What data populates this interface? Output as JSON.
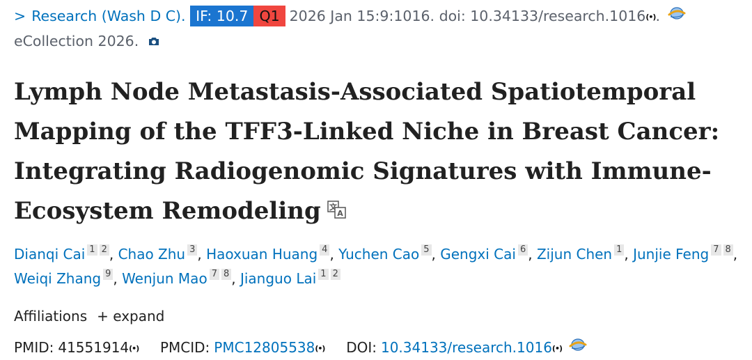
{
  "citation": {
    "chevron": ">",
    "journal": "Research (Wash D C).",
    "if_badge": "IF: 10.7",
    "quartile": "Q1",
    "date_info": "2026 Jan 15:9:1016. doi: 10.34133/research.1016",
    "signal_mark": "(•)",
    "period": ".",
    "ecollection": "eCollection 2026."
  },
  "title": "Lymph Node Metastasis-Associated Spatiotemporal Mapping of the TFF3-Linked Niche in Breast Cancer: Integrating Radiogenomic Signatures with Immune-Ecosystem Remodeling",
  "authors": [
    {
      "name": "Dianqi Cai",
      "affs": [
        "1",
        "2"
      ]
    },
    {
      "name": "Chao Zhu",
      "affs": [
        "3"
      ]
    },
    {
      "name": "Haoxuan Huang",
      "affs": [
        "4"
      ]
    },
    {
      "name": "Yuchen Cao",
      "affs": [
        "5"
      ]
    },
    {
      "name": "Gengxi Cai",
      "affs": [
        "6"
      ]
    },
    {
      "name": "Zijun Chen",
      "affs": [
        "1"
      ]
    },
    {
      "name": "Junjie Feng",
      "affs": [
        "7",
        "8"
      ]
    },
    {
      "name": "Weiqi Zhang",
      "affs": [
        "9"
      ]
    },
    {
      "name": "Wenjun Mao",
      "affs": [
        "7",
        "8"
      ]
    },
    {
      "name": "Jianguo Lai",
      "affs": [
        "1",
        "2"
      ]
    }
  ],
  "affiliations": {
    "label": "Affiliations",
    "expand": "+ expand"
  },
  "ids": {
    "pmid_label": "PMID:",
    "pmid": "41551914",
    "pmcid_label": "PMCID:",
    "pmcid": "PMC12805538",
    "doi_label": "DOI:",
    "doi": "10.34133/research.1016",
    "signal_mark": "(•)"
  },
  "colors": {
    "link": "#0071bc",
    "if_badge_bg": "#1b75d0",
    "quartile_bg": "#f0463f"
  },
  "icons": [
    "chevron-right-icon",
    "signal-icon",
    "globe-icon",
    "camera-icon",
    "translate-icon"
  ]
}
